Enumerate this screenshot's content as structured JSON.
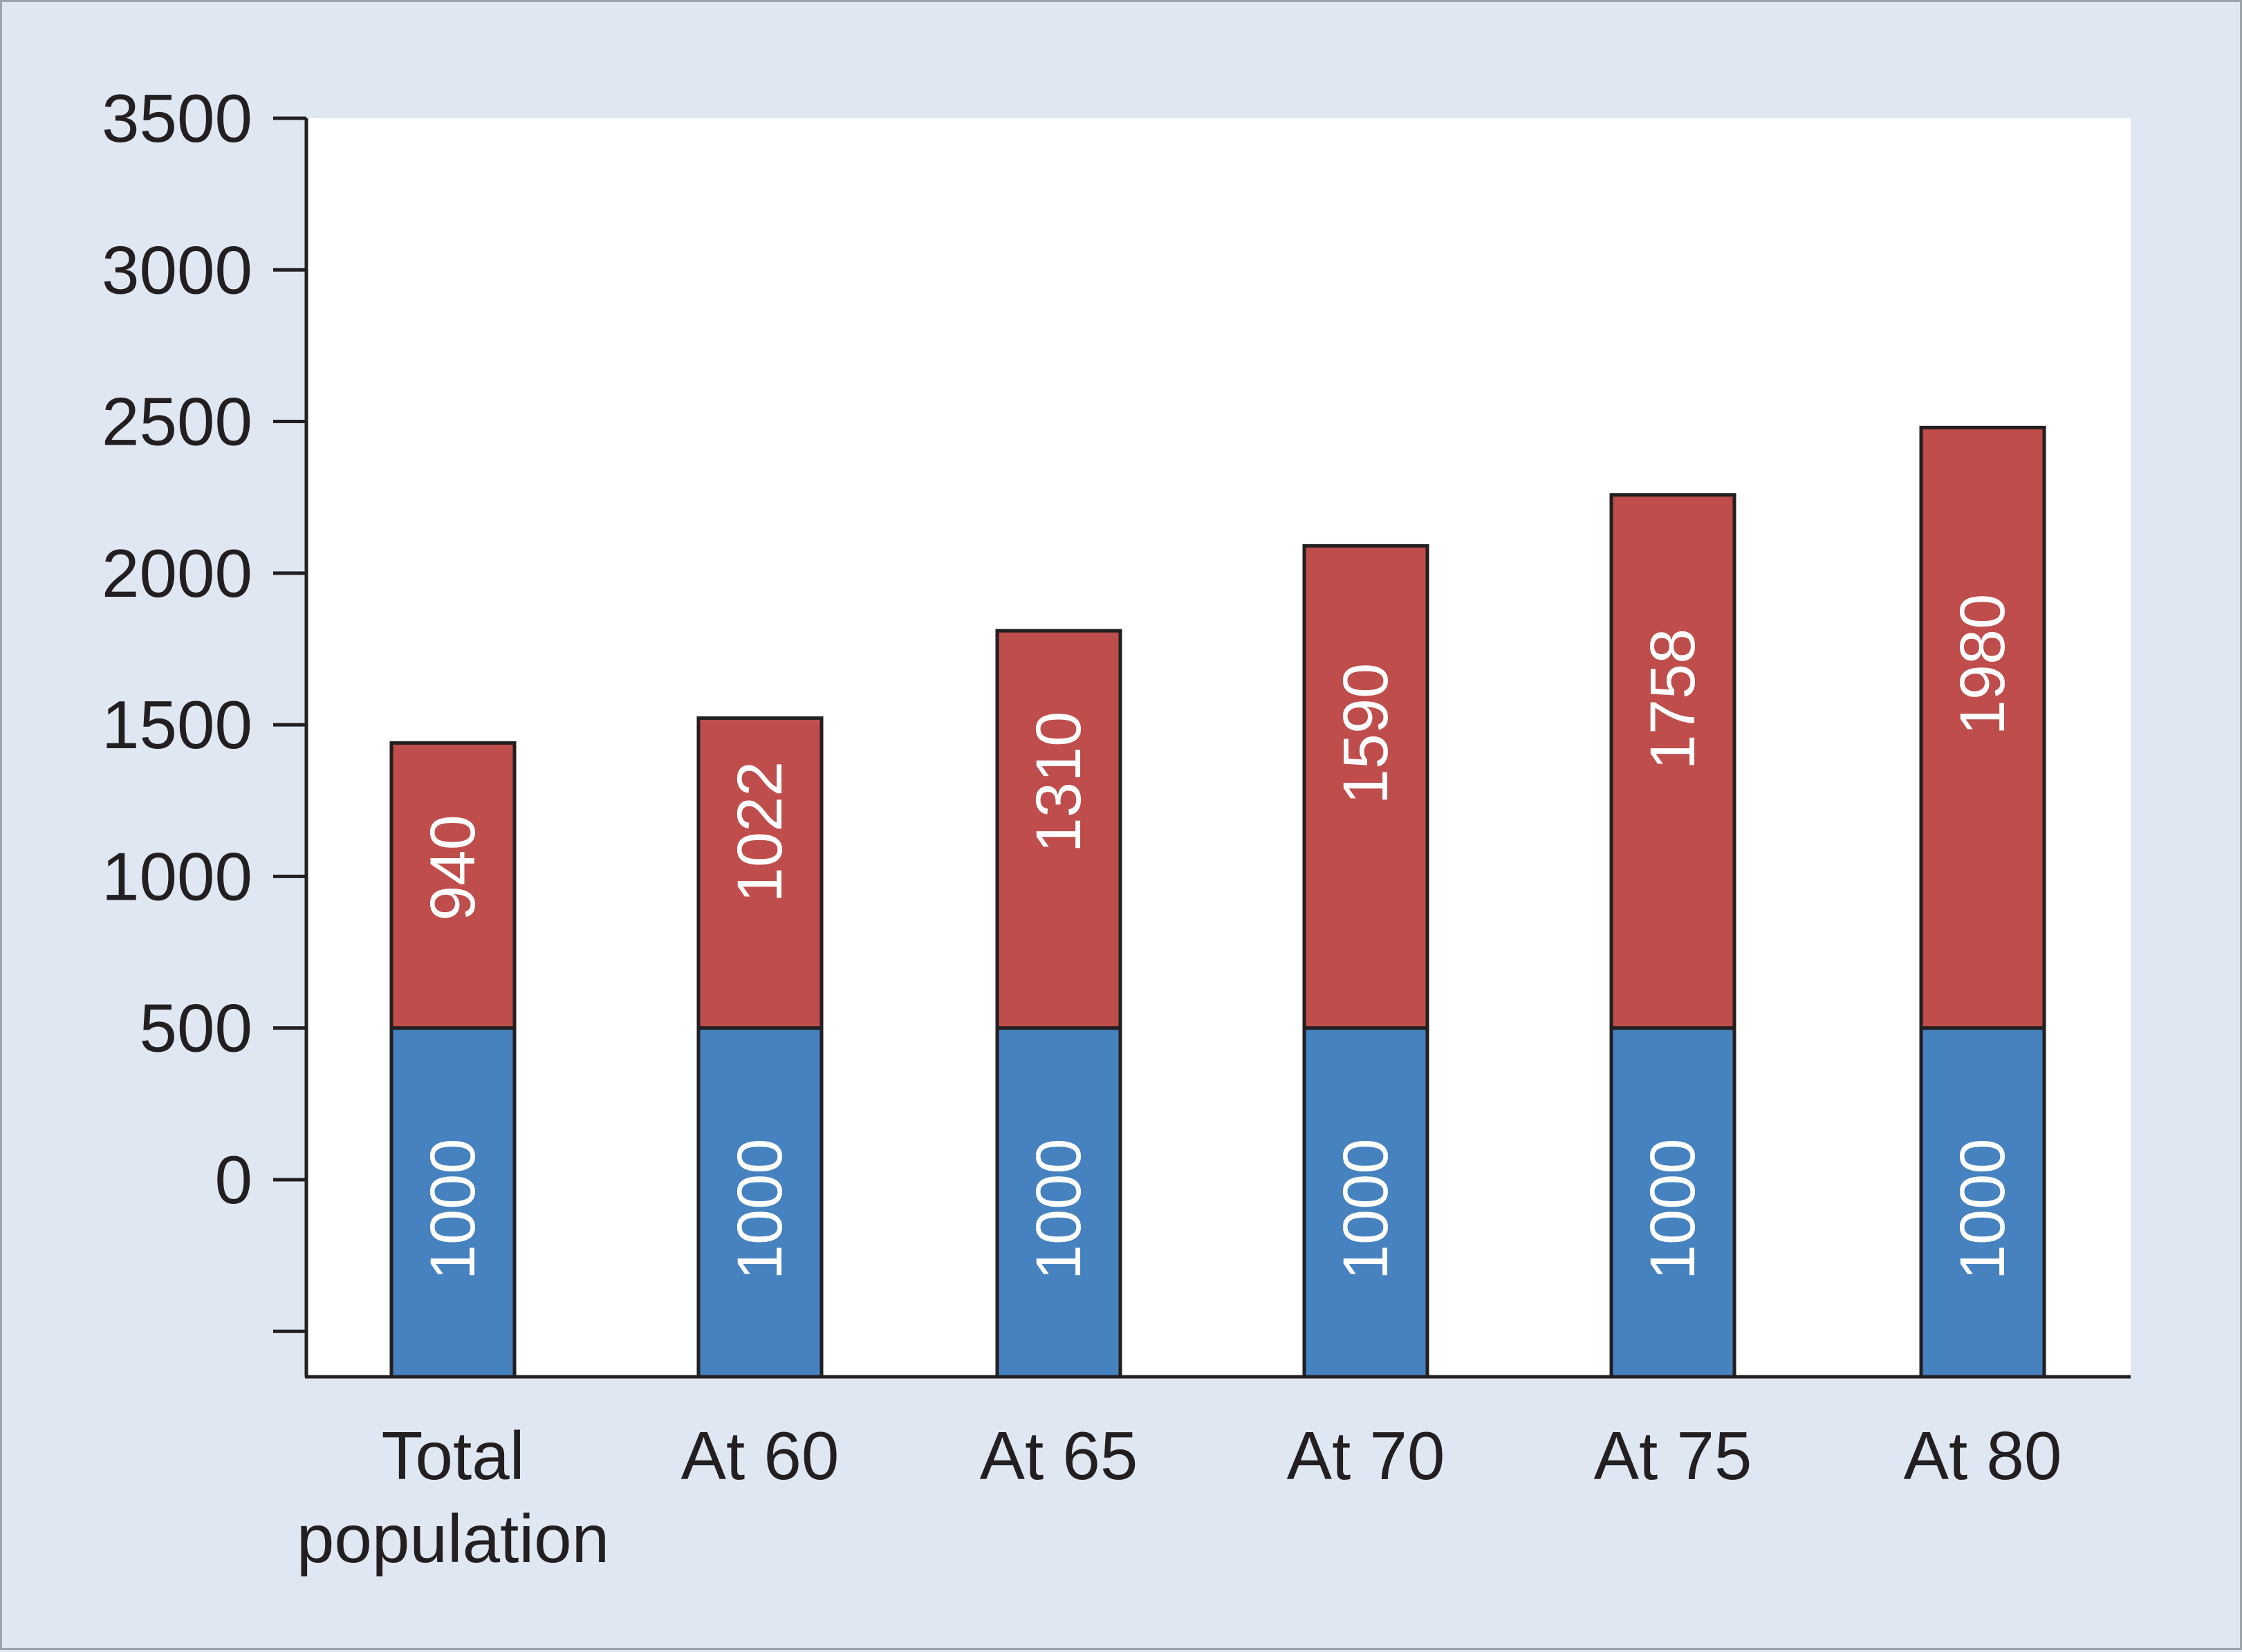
{
  "chart_data": {
    "type": "bar",
    "stacked": true,
    "categories": [
      [
        "Total",
        "population"
      ],
      [
        "At 60"
      ],
      [
        "At 65"
      ],
      [
        "At 70"
      ],
      [
        "At 75"
      ],
      [
        "At 80"
      ]
    ],
    "series": [
      {
        "values": [
          1000,
          1000,
          1000,
          1000,
          1000,
          1000
        ],
        "color": "#4682c0"
      },
      {
        "values": [
          940,
          1022,
          1310,
          1590,
          1758,
          1980
        ],
        "color": "#bf4d4b"
      }
    ],
    "yticks": [
      0,
      500,
      1000,
      1500,
      2000,
      2500,
      3000,
      3500
    ],
    "ylim": [
      -650,
      3500
    ],
    "title": "",
    "xlabel": "",
    "ylabel": "",
    "grid": false,
    "colors": {
      "background": "#dfe8f2",
      "plot": "#ffffff",
      "axis": "#231f20"
    }
  }
}
